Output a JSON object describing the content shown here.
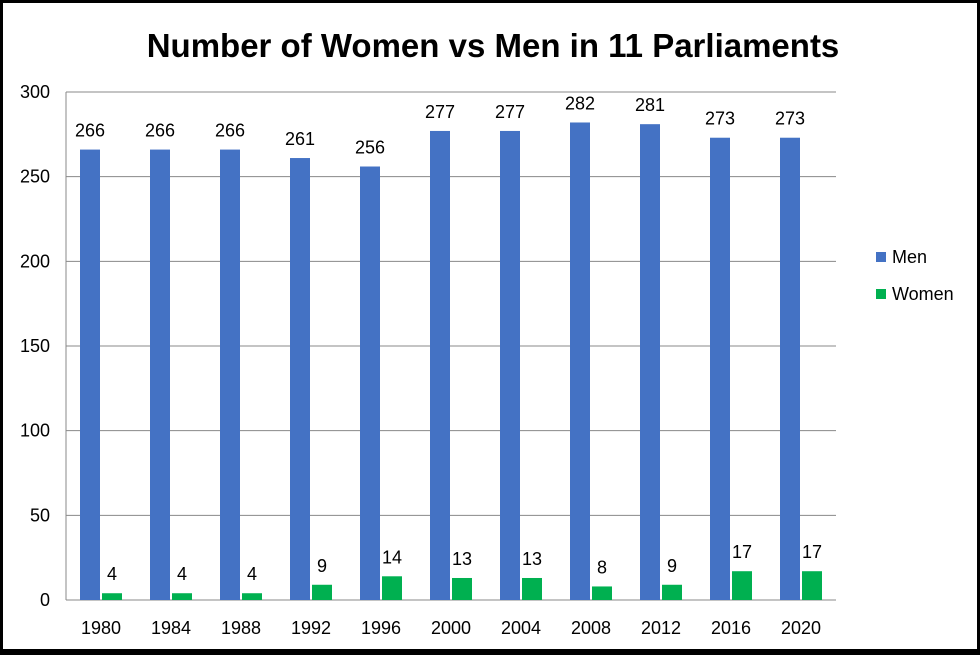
{
  "chart_data": {
    "type": "bar",
    "title": "Number of Women vs Men in 11 Parliaments",
    "xlabel": "",
    "ylabel": "",
    "categories": [
      "1980",
      "1984",
      "1988",
      "1992",
      "1996",
      "2000",
      "2004",
      "2008",
      "2012",
      "2016",
      "2020"
    ],
    "series": [
      {
        "name": "Men",
        "color": "#4472C4",
        "values": [
          266,
          266,
          266,
          261,
          256,
          277,
          277,
          282,
          281,
          273,
          273
        ]
      },
      {
        "name": "Women",
        "color": "#00B050",
        "values": [
          4,
          4,
          4,
          9,
          14,
          13,
          13,
          8,
          9,
          17,
          17
        ]
      }
    ],
    "ylim": [
      0,
      300
    ],
    "yticks": [
      "0",
      "50",
      "100",
      "150",
      "200",
      "250",
      "300"
    ],
    "grid": true,
    "legend_position": "right",
    "data_labels": true
  }
}
